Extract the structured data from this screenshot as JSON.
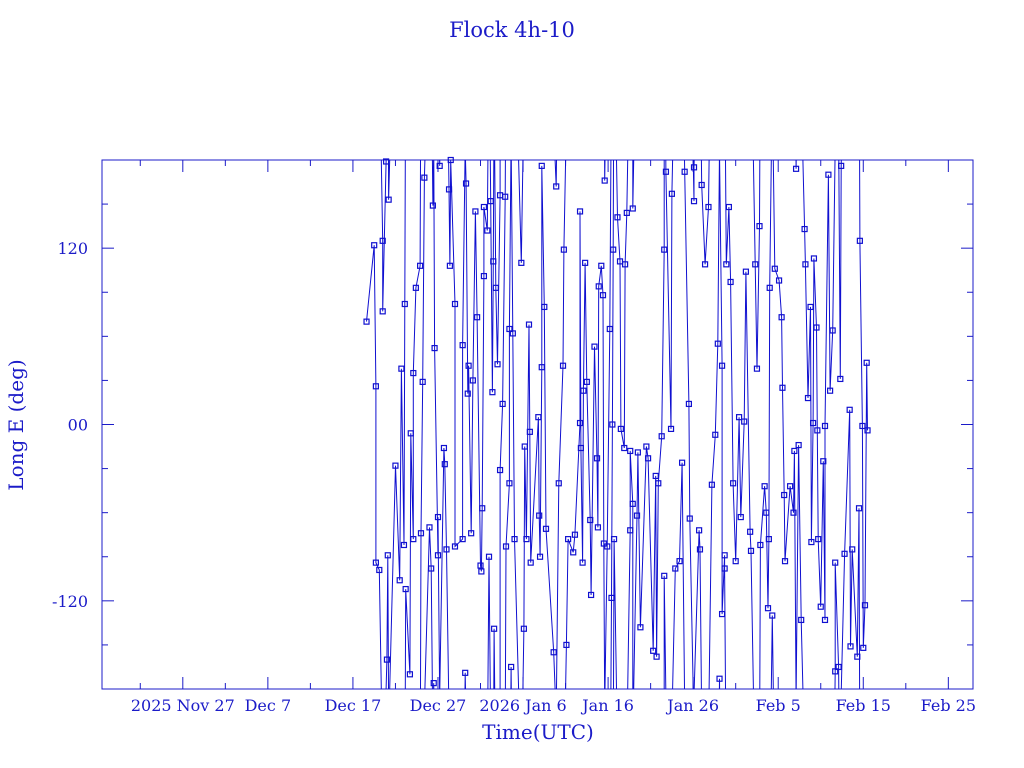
{
  "chart_data": {
    "type": "line",
    "title": "Flock 4h-10",
    "xlabel": "Time(UTC)",
    "ylabel": "Long E (deg)",
    "x_units": "days since 2025 Nov 27",
    "xlim": [
      -9.5,
      92.9
    ],
    "ylim": [
      -180,
      180
    ],
    "x_ticks": [
      {
        "value": 0,
        "label": "2025 Nov 27"
      },
      {
        "value": 10,
        "label": "Dec  7"
      },
      {
        "value": 20,
        "label": "Dec 17"
      },
      {
        "value": 30,
        "label": "Dec 27"
      },
      {
        "value": 40,
        "label": "2026 Jan  6"
      },
      {
        "value": 50,
        "label": "Jan 16"
      },
      {
        "value": 60,
        "label": "Jan 26"
      },
      {
        "value": 70,
        "label": "Feb  5"
      },
      {
        "value": 80,
        "label": "Feb 15"
      },
      {
        "value": 90,
        "label": "Feb 25"
      }
    ],
    "x_minor_step": 5,
    "y_ticks": [
      {
        "value": 120,
        "label": "120"
      },
      {
        "value": 0,
        "label": "00"
      },
      {
        "value": -120,
        "label": "-120"
      }
    ],
    "y_minor_step": 30,
    "grid": false,
    "color": "#1010d0",
    "axis_color": "#1b1bc8",
    "points": [
      [
        21.6,
        70
      ],
      [
        22.5,
        122
      ],
      [
        22.7,
        26
      ],
      [
        22.7,
        -94
      ],
      [
        23.1,
        -99
      ],
      [
        23.5,
        125
      ],
      [
        23.5,
        77
      ],
      [
        23.9,
        179
      ],
      [
        24,
        -160
      ],
      [
        24.1,
        -89
      ],
      [
        24.2,
        153
      ],
      [
        25,
        -28
      ],
      [
        25.5,
        -106
      ],
      [
        25.7,
        38
      ],
      [
        26,
        -82
      ],
      [
        26.1,
        82
      ],
      [
        26.2,
        -112
      ],
      [
        26.7,
        -170
      ],
      [
        26.8,
        -6
      ],
      [
        27.1,
        -78
      ],
      [
        27.1,
        35
      ],
      [
        27.4,
        93
      ],
      [
        27.9,
        108
      ],
      [
        28,
        -74
      ],
      [
        28.2,
        29
      ],
      [
        28.4,
        168
      ],
      [
        29,
        -70
      ],
      [
        29.2,
        -98
      ],
      [
        29.4,
        149
      ],
      [
        29.5,
        -176
      ],
      [
        29.6,
        52
      ],
      [
        30,
        -89
      ],
      [
        30,
        -63
      ],
      [
        30.2,
        176
      ],
      [
        30.7,
        -16
      ],
      [
        30.8,
        -27
      ],
      [
        31,
        -85
      ],
      [
        31.3,
        160
      ],
      [
        31.4,
        108
      ],
      [
        31.5,
        180
      ],
      [
        32,
        82
      ],
      [
        32,
        -83
      ],
      [
        32.9,
        -78
      ],
      [
        32.9,
        54
      ],
      [
        33.2,
        -169
      ],
      [
        33.3,
        164
      ],
      [
        33.5,
        21
      ],
      [
        33.6,
        40
      ],
      [
        33.9,
        -74
      ],
      [
        34.1,
        30
      ],
      [
        34.4,
        145
      ],
      [
        34.6,
        73
      ],
      [
        35,
        -96
      ],
      [
        35.1,
        -100
      ],
      [
        35.2,
        -57
      ],
      [
        35.4,
        101
      ],
      [
        35.4,
        148
      ],
      [
        35.8,
        132
      ],
      [
        36,
        -90
      ],
      [
        36.2,
        152
      ],
      [
        36.4,
        22
      ],
      [
        36.5,
        111
      ],
      [
        36.6,
        -139
      ],
      [
        36.8,
        93
      ],
      [
        37,
        41
      ],
      [
        37.3,
        156
      ],
      [
        37.3,
        -31
      ],
      [
        37.6,
        14
      ],
      [
        37.9,
        155
      ],
      [
        38,
        -83
      ],
      [
        38.4,
        -40
      ],
      [
        38.4,
        65
      ],
      [
        38.6,
        -165
      ],
      [
        38.8,
        62
      ],
      [
        39,
        -78
      ],
      [
        39.8,
        110
      ],
      [
        40.1,
        -139
      ],
      [
        40.2,
        -15
      ],
      [
        40.4,
        -78
      ],
      [
        40.7,
        68
      ],
      [
        40.8,
        -5
      ],
      [
        40.9,
        -94
      ],
      [
        41.8,
        5
      ],
      [
        41.9,
        -62
      ],
      [
        42,
        -90
      ],
      [
        42.2,
        39
      ],
      [
        42.2,
        176
      ],
      [
        42.5,
        80
      ],
      [
        42.7,
        -71
      ],
      [
        43.6,
        -155
      ],
      [
        43.9,
        162
      ],
      [
        44.2,
        -40
      ],
      [
        44.7,
        40
      ],
      [
        44.8,
        119
      ],
      [
        45.1,
        -150
      ],
      [
        45.3,
        -78
      ],
      [
        45.9,
        -87
      ],
      [
        46.1,
        -75
      ],
      [
        46.7,
        1
      ],
      [
        46.7,
        145
      ],
      [
        46.8,
        -16
      ],
      [
        47,
        -94
      ],
      [
        47.1,
        23
      ],
      [
        47.3,
        110
      ],
      [
        47.5,
        29
      ],
      [
        47.9,
        -65
      ],
      [
        48,
        -116
      ],
      [
        48.4,
        53
      ],
      [
        48.7,
        -23
      ],
      [
        48.8,
        -70
      ],
      [
        48.9,
        94
      ],
      [
        49.2,
        108
      ],
      [
        49.4,
        88
      ],
      [
        49.5,
        -81
      ],
      [
        49.6,
        166
      ],
      [
        49.9,
        -83
      ],
      [
        50.2,
        65
      ],
      [
        50.4,
        -118
      ],
      [
        50.5,
        0
      ],
      [
        50.6,
        119
      ],
      [
        50.7,
        -78
      ],
      [
        51.1,
        141
      ],
      [
        51.4,
        111
      ],
      [
        51.5,
        -3
      ],
      [
        51.9,
        -16
      ],
      [
        52,
        109
      ],
      [
        52.2,
        144
      ],
      [
        52.6,
        -72
      ],
      [
        52.6,
        -18
      ],
      [
        52.9,
        -54
      ],
      [
        52.9,
        147
      ],
      [
        53.4,
        -62
      ],
      [
        53.5,
        -19
      ],
      [
        53.8,
        -138
      ],
      [
        54.5,
        -15
      ],
      [
        54.7,
        -23
      ],
      [
        55.3,
        -154
      ],
      [
        55.6,
        -35
      ],
      [
        55.7,
        -158
      ],
      [
        55.9,
        -40
      ],
      [
        56.3,
        -8
      ],
      [
        56.6,
        119
      ],
      [
        56.6,
        -103
      ],
      [
        56.8,
        172
      ],
      [
        57.4,
        -3
      ],
      [
        57.5,
        157
      ],
      [
        57.9,
        -98
      ],
      [
        58.4,
        -93
      ],
      [
        58.7,
        -26
      ],
      [
        59,
        172
      ],
      [
        59.5,
        14
      ],
      [
        59.6,
        -64
      ],
      [
        60.1,
        152
      ],
      [
        60.1,
        175
      ],
      [
        60.7,
        -72
      ],
      [
        60.8,
        -85
      ],
      [
        61,
        163
      ],
      [
        61.4,
        109
      ],
      [
        61.8,
        148
      ],
      [
        62.2,
        -41
      ],
      [
        62.6,
        -7
      ],
      [
        62.9,
        55
      ],
      [
        63.1,
        -173
      ],
      [
        63.4,
        40
      ],
      [
        63.4,
        -129
      ],
      [
        63.7,
        -89
      ],
      [
        63.7,
        -98
      ],
      [
        63.9,
        109
      ],
      [
        64.2,
        148
      ],
      [
        64.4,
        97
      ],
      [
        64.7,
        -40
      ],
      [
        65,
        -93
      ],
      [
        65.4,
        5
      ],
      [
        65.6,
        -63
      ],
      [
        66,
        2
      ],
      [
        66.2,
        104
      ],
      [
        66.7,
        -73
      ],
      [
        66.8,
        -86
      ],
      [
        67.3,
        109
      ],
      [
        67.5,
        38
      ],
      [
        67.8,
        135
      ],
      [
        67.9,
        -82
      ],
      [
        68.4,
        -42
      ],
      [
        68.6,
        -60
      ],
      [
        68.8,
        -125
      ],
      [
        68.9,
        -78
      ],
      [
        69,
        93
      ],
      [
        69.3,
        -130
      ],
      [
        69.6,
        106
      ],
      [
        70.1,
        98
      ],
      [
        70.4,
        73
      ],
      [
        70.5,
        25
      ],
      [
        70.7,
        -48
      ],
      [
        70.8,
        -93
      ],
      [
        71.4,
        -42
      ],
      [
        71.8,
        -60
      ],
      [
        71.9,
        -18
      ],
      [
        72.1,
        174
      ],
      [
        72.4,
        -14
      ],
      [
        72.7,
        -133
      ],
      [
        73.1,
        133
      ],
      [
        73.2,
        109
      ],
      [
        73.5,
        18
      ],
      [
        73.8,
        80
      ],
      [
        73.9,
        -80
      ],
      [
        74.1,
        1
      ],
      [
        74.2,
        113
      ],
      [
        74.5,
        66
      ],
      [
        74.6,
        -4
      ],
      [
        74.7,
        -78
      ],
      [
        75,
        -124
      ],
      [
        75.3,
        -25
      ],
      [
        75.5,
        -133
      ],
      [
        75.5,
        -1
      ],
      [
        75.9,
        170
      ],
      [
        76.1,
        23
      ],
      [
        76.4,
        64
      ],
      [
        76.7,
        -168
      ],
      [
        76.7,
        -94
      ],
      [
        77.1,
        -165
      ],
      [
        77.3,
        31
      ],
      [
        77.4,
        176
      ],
      [
        77.8,
        -88
      ],
      [
        78.4,
        10
      ],
      [
        78.5,
        -151
      ],
      [
        78.7,
        -85
      ],
      [
        79.3,
        -158
      ],
      [
        79.5,
        -57
      ],
      [
        79.6,
        125
      ],
      [
        79.9,
        -1
      ],
      [
        80,
        -152
      ],
      [
        80.2,
        -123
      ],
      [
        80.4,
        42
      ],
      [
        80.5,
        -4
      ]
    ]
  }
}
